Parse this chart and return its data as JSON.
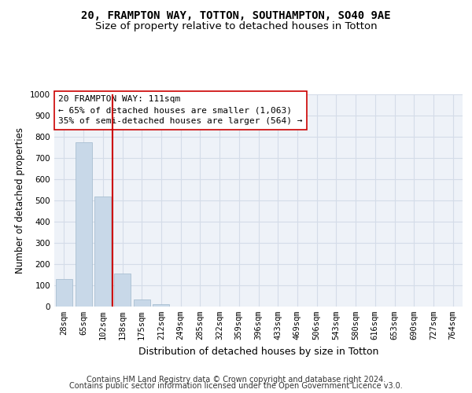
{
  "title_main": "20, FRAMPTON WAY, TOTTON, SOUTHAMPTON, SO40 9AE",
  "title_sub": "Size of property relative to detached houses in Totton",
  "xlabel": "Distribution of detached houses by size in Totton",
  "ylabel": "Number of detached properties",
  "bar_labels": [
    "28sqm",
    "65sqm",
    "102sqm",
    "138sqm",
    "175sqm",
    "212sqm",
    "249sqm",
    "285sqm",
    "322sqm",
    "359sqm",
    "396sqm",
    "433sqm",
    "469sqm",
    "506sqm",
    "543sqm",
    "580sqm",
    "616sqm",
    "653sqm",
    "690sqm",
    "727sqm",
    "764sqm"
  ],
  "bar_values": [
    130,
    775,
    520,
    155,
    35,
    10,
    0,
    0,
    0,
    0,
    0,
    0,
    0,
    0,
    0,
    0,
    0,
    0,
    0,
    0,
    0
  ],
  "bar_color": "#c8d8e8",
  "bar_edgecolor": "#a0b8cc",
  "vline_x_pos": 2.5,
  "vline_color": "#cc0000",
  "annotation_text": "20 FRAMPTON WAY: 111sqm\n← 65% of detached houses are smaller (1,063)\n35% of semi-detached houses are larger (564) →",
  "annotation_box_facecolor": "#ffffff",
  "annotation_box_edgecolor": "#cc0000",
  "ylim": [
    0,
    1000
  ],
  "yticks": [
    0,
    100,
    200,
    300,
    400,
    500,
    600,
    700,
    800,
    900,
    1000
  ],
  "grid_color": "#d4dce8",
  "bg_color": "#eef2f8",
  "footer_line1": "Contains HM Land Registry data © Crown copyright and database right 2024.",
  "footer_line2": "Contains public sector information licensed under the Open Government Licence v3.0.",
  "title_fontsize": 10,
  "subtitle_fontsize": 9.5,
  "xlabel_fontsize": 9,
  "ylabel_fontsize": 8.5,
  "tick_fontsize": 7.5,
  "annotation_fontsize": 8,
  "footer_fontsize": 7
}
